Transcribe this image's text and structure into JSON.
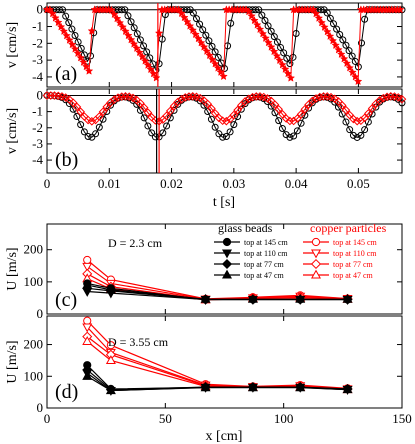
{
  "colors": {
    "black": "#000000",
    "red": "#ff0000"
  },
  "chart_data": [
    {
      "panel": "(a)",
      "type": "line",
      "ylabel": "v [cm/s]",
      "xlim": [
        0,
        0.057
      ],
      "ylim": [
        -4.6,
        0.4
      ],
      "yticks": [
        0,
        -1,
        -2,
        -3,
        -4
      ],
      "grid": false,
      "series": [
        {
          "marker": "open-circle",
          "color": "#000000",
          "dips": [
            {
              "start": 0.0025,
              "min": 0.0068,
              "end": 0.008,
              "depth": -3.3
            },
            {
              "start": 0.0125,
              "min": 0.0178,
              "end": 0.0191,
              "depth": -3.8
            },
            {
              "start": 0.0232,
              "min": 0.0285,
              "end": 0.0298,
              "depth": -3.5
            },
            {
              "start": 0.034,
              "min": 0.0393,
              "end": 0.0405,
              "depth": -3.4
            },
            {
              "start": 0.0447,
              "min": 0.05,
              "end": 0.0512,
              "depth": -3.4
            }
          ]
        },
        {
          "marker": "star",
          "color": "#ff0000",
          "dips": [
            {
              "start": 0.0005,
              "min": 0.007,
              "end": 0.0073,
              "depth": -3.8
            },
            {
              "start": 0.0103,
              "min": 0.0178,
              "end": 0.0181,
              "depth": -4.2
            },
            {
              "start": 0.0212,
              "min": 0.0284,
              "end": 0.0287,
              "depth": -4.0
            },
            {
              "start": 0.0322,
              "min": 0.0392,
              "end": 0.0395,
              "depth": -4.1
            },
            {
              "start": 0.0428,
              "min": 0.05,
              "end": 0.0503,
              "depth": -4.3
            }
          ]
        }
      ],
      "vlines": [
        {
          "x": 0.0178,
          "color": "#ff0000"
        }
      ]
    },
    {
      "panel": "(b)",
      "type": "line",
      "ylabel": "v [cm/s]",
      "xlabel": "t [s]",
      "xlim": [
        0,
        0.057
      ],
      "xticks": [
        0,
        0.01,
        0.02,
        0.03,
        0.04,
        0.05
      ],
      "xticklabels": [
        "0",
        "0.01",
        "0.02",
        "0.03",
        "0.04",
        "0.05"
      ],
      "ylim": [
        -4.8,
        0.4
      ],
      "yticks": [
        0,
        -1,
        -2,
        -3,
        -4
      ],
      "grid": false,
      "series": [
        {
          "marker": "open-circle",
          "color": "#000000",
          "period": 0.0107,
          "first_min": 0.007,
          "depth": -2.6,
          "width": 0.003
        },
        {
          "marker": "open-diamond",
          "color": "#ff0000",
          "period": 0.0107,
          "first_min": 0.0072,
          "depth": -1.6,
          "width": 0.003
        }
      ],
      "vlines": [
        {
          "x": 0.0176,
          "color": "#000000"
        },
        {
          "x": 0.018,
          "color": "#ff0000"
        }
      ]
    },
    {
      "panel": "(c)",
      "type": "line",
      "ylabel": "U [m/s]",
      "annotation": "D = 2.3 cm",
      "xlim": [
        0,
        150
      ],
      "ylim": [
        0,
        280
      ],
      "yticks": [
        0,
        100,
        200
      ],
      "series": [
        {
          "group": "glass beads",
          "name": "top at 145 cm",
          "marker": "circle-filled",
          "color": "#000000",
          "x": [
            17,
            27,
            67,
            87,
            107,
            127
          ],
          "y": [
            95,
            80,
            45,
            45,
            45,
            45
          ]
        },
        {
          "group": "glass beads",
          "name": "top at 110 cm",
          "marker": "triangle-down-filled",
          "color": "#000000",
          "x": [
            17,
            27,
            67,
            87,
            107,
            127
          ],
          "y": [
            70,
            65,
            45,
            45,
            45,
            45
          ]
        },
        {
          "group": "glass beads",
          "name": "top at 77 cm",
          "marker": "diamond-filled",
          "color": "#000000",
          "x": [
            17,
            27,
            67,
            87,
            107,
            127
          ],
          "y": [
            80,
            72,
            45,
            45,
            45,
            45
          ]
        },
        {
          "group": "glass beads",
          "name": "top at 47 cm",
          "marker": "triangle-up-filled",
          "color": "#000000",
          "x": [
            17,
            27,
            67,
            87,
            107,
            127
          ],
          "y": [
            90,
            75,
            46,
            46,
            46,
            46
          ]
        },
        {
          "group": "copper particles",
          "name": "top at 145 cm",
          "marker": "circle-open",
          "color": "#ff0000",
          "x": [
            17,
            27,
            67,
            87,
            107,
            127
          ],
          "y": [
            168,
            107,
            47,
            52,
            58,
            48
          ]
        },
        {
          "group": "copper particles",
          "name": "top at 110 cm",
          "marker": "triangle-down-open",
          "color": "#ff0000",
          "x": [
            17,
            27,
            67,
            87,
            107,
            127
          ],
          "y": [
            148,
            95,
            46,
            50,
            55,
            48
          ]
        },
        {
          "group": "copper particles",
          "name": "top at 77 cm",
          "marker": "diamond-open",
          "color": "#ff0000",
          "x": [
            17,
            27,
            67,
            87,
            107,
            127
          ],
          "y": [
            125,
            85,
            45,
            50,
            53,
            47
          ]
        },
        {
          "group": "copper particles",
          "name": "top at 47 cm",
          "marker": "triangle-up-open",
          "color": "#ff0000",
          "x": [
            17,
            27,
            67,
            87,
            107,
            127
          ],
          "y": [
            110,
            78,
            44,
            48,
            50,
            46
          ]
        }
      ]
    },
    {
      "panel": "(d)",
      "type": "line",
      "ylabel": "U [m/s]",
      "xlabel": "x [cm]",
      "annotation": "D = 3.55 cm",
      "xlim": [
        0,
        150
      ],
      "xticks": [
        0,
        50,
        100,
        150
      ],
      "ylim": [
        0,
        290
      ],
      "yticks": [
        0,
        100,
        200
      ],
      "series": [
        {
          "group": "glass beads",
          "name": "top at 145 cm",
          "marker": "circle-filled",
          "color": "#000000",
          "x": [
            17,
            27,
            67,
            87,
            107,
            127
          ],
          "y": [
            135,
            60,
            65,
            65,
            65,
            60
          ]
        },
        {
          "group": "glass beads",
          "name": "top at 110 cm",
          "marker": "triangle-down-filled",
          "color": "#000000",
          "x": [
            17,
            27,
            67,
            87,
            107,
            127
          ],
          "y": [
            110,
            55,
            65,
            65,
            65,
            58
          ]
        },
        {
          "group": "glass beads",
          "name": "top at 77 cm",
          "marker": "diamond-filled",
          "color": "#000000",
          "x": [
            17,
            27,
            67,
            87,
            107,
            127
          ],
          "y": [
            120,
            58,
            66,
            66,
            66,
            60
          ]
        },
        {
          "group": "glass beads",
          "name": "top at 47 cm",
          "marker": "triangle-up-filled",
          "color": "#000000",
          "x": [
            17,
            27,
            67,
            87,
            107,
            127
          ],
          "y": [
            100,
            55,
            64,
            64,
            64,
            58
          ]
        },
        {
          "group": "copper particles",
          "name": "top at 145 cm",
          "marker": "circle-open",
          "color": "#ff0000",
          "x": [
            17,
            27,
            67,
            87,
            107,
            127
          ],
          "y": [
            275,
            198,
            75,
            68,
            72,
            62
          ]
        },
        {
          "group": "copper particles",
          "name": "top at 110 cm",
          "marker": "triangle-down-open",
          "color": "#ff0000",
          "x": [
            17,
            27,
            67,
            87,
            107,
            127
          ],
          "y": [
            255,
            175,
            72,
            67,
            70,
            60
          ]
        },
        {
          "group": "copper particles",
          "name": "top at 77 cm",
          "marker": "diamond-open",
          "color": "#ff0000",
          "x": [
            17,
            27,
            67,
            87,
            107,
            127
          ],
          "y": [
            225,
            168,
            70,
            66,
            68,
            60
          ]
        },
        {
          "group": "copper particles",
          "name": "top at 47 cm",
          "marker": "triangle-up-open",
          "color": "#ff0000",
          "x": [
            17,
            27,
            67,
            87,
            107,
            127
          ],
          "y": [
            210,
            150,
            68,
            65,
            66,
            58
          ]
        }
      ]
    }
  ],
  "legend": {
    "glass_title": "glass beads",
    "copper_title": "copper particles",
    "entries": [
      "top at 145 cm",
      "top at 110 cm",
      "top at 77 cm",
      "top at 47 cm"
    ]
  }
}
